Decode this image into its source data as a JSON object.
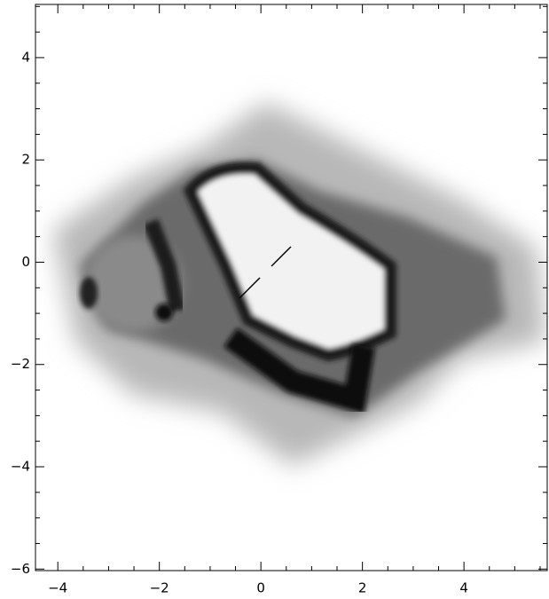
{
  "chart_data": {
    "type": "image",
    "xlim": [
      -4.44,
      5.64
    ],
    "ylim": [
      -6.03,
      5.04
    ],
    "xticks": [
      {
        "value": -4,
        "label": "−4"
      },
      {
        "value": -2,
        "label": "−2"
      },
      0,
      2,
      4
    ],
    "yticks": [
      {
        "value": -6,
        "label": "−6"
      },
      {
        "value": -4,
        "label": "−4"
      },
      {
        "value": -2,
        "label": "−2"
      },
      0,
      2,
      4
    ],
    "xminorticks": [
      -3.5,
      -3,
      -2.5,
      -1.5,
      -1,
      -0.5,
      0.5,
      1,
      1.5,
      2.5,
      3,
      3.5,
      4.5,
      5,
      5.5
    ],
    "yminorticks": [
      -5.5,
      -5,
      -4.5,
      -3.5,
      -3,
      -2.5,
      -1.5,
      -1,
      -0.5,
      0.5,
      1,
      1.5,
      2.5,
      3,
      3.5,
      4.5,
      5
    ]
  }
}
